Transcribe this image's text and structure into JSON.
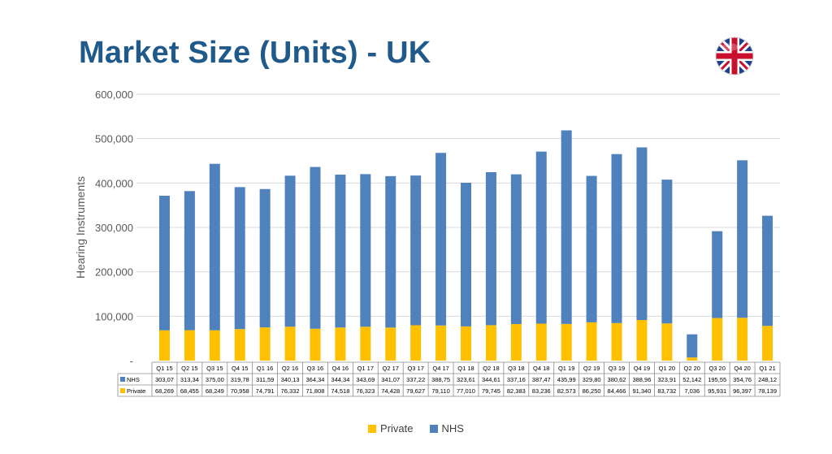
{
  "title": "Market Size (Units) - UK",
  "colors": {
    "title": "#1F5A8A",
    "nhs": "#4F81BD",
    "private": "#FFC000"
  },
  "icons": {
    "flag": "uk-flag-icon"
  },
  "chart_data": {
    "type": "bar",
    "stacked": true,
    "ylabel": "Hearing Instruments",
    "ylim": [
      0,
      600000
    ],
    "yticks": [
      "-",
      "100,000",
      "200,000",
      "300,000",
      "400,000",
      "500,000",
      "600,000"
    ],
    "grid": true,
    "legend_position": "bottom",
    "categories": [
      "Q1 15",
      "Q2 15",
      "Q3 15",
      "Q4 15",
      "Q1 16",
      "Q2 16",
      "Q3 16",
      "Q4 16",
      "Q1 17",
      "Q2 17",
      "Q3 17",
      "Q4 17",
      "Q1 18",
      "Q2 18",
      "Q3 18",
      "Q4 18",
      "Q1 19",
      "Q2 19",
      "Q3 19",
      "Q4 19",
      "Q1 20",
      "Q2 20",
      "Q3 20",
      "Q4 20",
      "Q1 21"
    ],
    "series": [
      {
        "name": "NHS",
        "values": [
          303070,
          313340,
          375000,
          319780,
          311590,
          340130,
          364340,
          344340,
          343690,
          341070,
          337220,
          388750,
          323610,
          344610,
          337160,
          387470,
          435990,
          329800,
          380620,
          388960,
          323910,
          52142,
          195550,
          354760,
          248120
        ],
        "labels": [
          "303,07",
          "313,34",
          "375,00",
          "319,78",
          "311,59",
          "340,13",
          "364,34",
          "344,34",
          "343,69",
          "341,07",
          "337,22",
          "388,75",
          "323,61",
          "344,61",
          "337,16",
          "387,47",
          "435,99",
          "329,80",
          "380,62",
          "388,96",
          "323,91",
          "52,142",
          "195,55",
          "354,76",
          "248,12"
        ]
      },
      {
        "name": "Private",
        "values": [
          68269,
          68455,
          68249,
          70958,
          74791,
          76332,
          71808,
          74518,
          76323,
          74428,
          79627,
          79110,
          77010,
          79745,
          82383,
          83236,
          82573,
          86250,
          84466,
          91340,
          83732,
          7036,
          95931,
          96397,
          78139
        ],
        "labels": [
          "68,269",
          "68,455",
          "68,249",
          "70,958",
          "74,791",
          "76,332",
          "71,808",
          "74,518",
          "76,323",
          "74,428",
          "79,627",
          "79,110",
          "77,010",
          "79,745",
          "82,383",
          "83,236",
          "82,573",
          "86,250",
          "84,466",
          "91,340",
          "83,732",
          "7,036",
          "95,931",
          "96,397",
          "78,139"
        ]
      }
    ],
    "legend": [
      "Private",
      "NHS"
    ]
  }
}
